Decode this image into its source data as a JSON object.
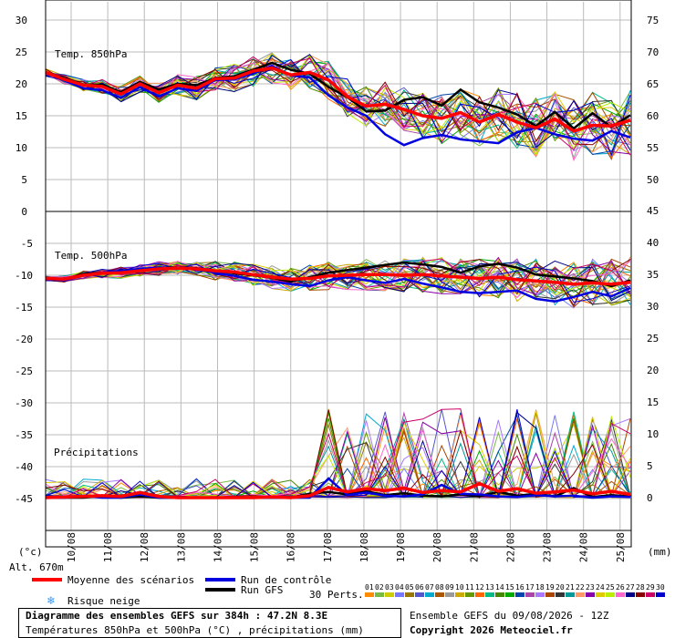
{
  "chart_data": {
    "type": "line",
    "panels": [
      {
        "id": "t850",
        "title": "Temp. 850hPa",
        "left_axis": {
          "ticks": [
            "30",
            "25",
            "20",
            "15",
            "10",
            "5",
            "0"
          ],
          "min": 0,
          "max": 30
        },
        "right_axis": {
          "ticks": [
            "75",
            "70",
            "65",
            "60",
            "55",
            "50"
          ],
          "min": 45,
          "max": 75
        }
      },
      {
        "id": "t500",
        "title": "Temp. 500hPa",
        "left_axis": {
          "ticks": [
            "-5",
            "-10",
            "-15",
            "-20",
            "-25",
            "-30",
            "-35",
            "-40",
            "-45"
          ],
          "min": -50,
          "max": 0
        },
        "right_axis": {
          "ticks": [
            "45",
            "40",
            "35",
            "30",
            "25",
            "20",
            "15",
            "10",
            "5",
            "0"
          ],
          "min": -5,
          "max": 45
        }
      }
    ],
    "precip_title": "Précipitations",
    "x_labels": [
      "10/08",
      "11/08",
      "12/08",
      "13/08",
      "14/08",
      "15/08",
      "16/08",
      "17/08",
      "18/08",
      "19/08",
      "20/08",
      "21/08",
      "22/08",
      "23/08",
      "24/08",
      "25/08"
    ],
    "unit_left": "(°c)",
    "unit_right": "(mm)",
    "altitude": "Alt. 670m",
    "series": [
      {
        "name": "Moyenne des scénarios",
        "color": "#ff0000",
        "t850": [
          21.8,
          20.7,
          19.8,
          19.6,
          18.4,
          20.0,
          18.6,
          19.8,
          19.3,
          20.8,
          20.9,
          22.0,
          22.5,
          21.4,
          21.8,
          20.6,
          18.0,
          16.5,
          16.8,
          16.0,
          15.0,
          14.6,
          15.5,
          14.0,
          15.2,
          14.0,
          13.1,
          14.5,
          12.6,
          13.5,
          13.4,
          14.3
        ],
        "t500": [
          -10.5,
          -10.6,
          -10.0,
          -9.7,
          -9.6,
          -9.3,
          -9.0,
          -8.9,
          -9.0,
          -9.3,
          -9.5,
          -9.9,
          -10.3,
          -10.6,
          -10.5,
          -10.1,
          -10.0,
          -9.9,
          -9.9,
          -10.0,
          -9.9,
          -10.1,
          -10.3,
          -10.5,
          -10.3,
          -10.7,
          -10.9,
          -11.1,
          -11.4,
          -11.2,
          -11.4,
          -11.1
        ],
        "precip": [
          0,
          0.1,
          0.2,
          0.3,
          0.2,
          0.8,
          0.2,
          0,
          0,
          0,
          0,
          0,
          0.1,
          0,
          0.3,
          1.6,
          0.9,
          1.4,
          1.1,
          1.5,
          0.8,
          1.1,
          0.9,
          2.2,
          1.0,
          1.4,
          0.7,
          0.9,
          1.2,
          0.6,
          1.0,
          0.5
        ]
      },
      {
        "name": "Run de contrôle",
        "color": "#0000e0",
        "t850": [
          21.8,
          20.5,
          19.3,
          19.0,
          17.8,
          19.5,
          18.0,
          19.3,
          18.9,
          20.6,
          20.7,
          21.6,
          22.8,
          21.3,
          21.0,
          18.2,
          16.3,
          15.0,
          12.1,
          10.4,
          11.5,
          12.0,
          11.3,
          11.0,
          10.7,
          12.4,
          13.1,
          12.1,
          11.4,
          11.1,
          12.6,
          11.6
        ],
        "t500": [
          -10.4,
          -10.8,
          -10.0,
          -9.6,
          -9.3,
          -9.0,
          -8.8,
          -8.9,
          -9.1,
          -9.6,
          -10.1,
          -10.7,
          -11.0,
          -11.4,
          -11.7,
          -10.8,
          -10.3,
          -10.8,
          -11.2,
          -10.6,
          -11.3,
          -11.9,
          -12.6,
          -12.8,
          -12.6,
          -12.4,
          -13.7,
          -14.1,
          -13.4,
          -12.6,
          -13.3,
          -12.0
        ],
        "precip": [
          0,
          0,
          0.3,
          0,
          0,
          0.5,
          0,
          0,
          0,
          0,
          0,
          0,
          0,
          0,
          0,
          3.0,
          0.4,
          0.8,
          0.3,
          0.2,
          0.5,
          2.0,
          0.6,
          0.5,
          0.2,
          0.1,
          0.4,
          0.2,
          0.3,
          0,
          0.2,
          0.1
        ]
      },
      {
        "name": "Run GFS",
        "color": "#000000",
        "t850": [
          21.8,
          20.9,
          19.9,
          19.9,
          18.7,
          20.3,
          19.1,
          20.0,
          19.8,
          20.9,
          21.2,
          22.2,
          23.3,
          22.2,
          21.6,
          19.5,
          17.9,
          15.7,
          15.8,
          17.5,
          17.9,
          16.6,
          19.1,
          17.1,
          16.3,
          15.2,
          13.4,
          15.6,
          13.0,
          15.4,
          13.2,
          15.1
        ],
        "t500": [
          -10.4,
          -10.6,
          -9.8,
          -9.6,
          -9.4,
          -9.1,
          -8.8,
          -8.8,
          -8.9,
          -9.3,
          -9.7,
          -10.0,
          -10.4,
          -11.0,
          -10.3,
          -9.6,
          -9.2,
          -8.8,
          -8.4,
          -8.0,
          -8.3,
          -8.7,
          -9.6,
          -8.6,
          -8.2,
          -8.8,
          -9.9,
          -10.2,
          -10.5,
          -10.9,
          -11.7,
          -10.8
        ],
        "precip": [
          0,
          0,
          0,
          0.3,
          0,
          0.2,
          0,
          0,
          0,
          0,
          0,
          0,
          0,
          0,
          0.6,
          0.9,
          0.5,
          1.0,
          0.4,
          0.7,
          0.3,
          0.2,
          0.5,
          0.2,
          0.9,
          0.3,
          0.6,
          0.2,
          1.5,
          0.1,
          0.4,
          0.2
        ]
      }
    ],
    "legend": {
      "mean": "Moyenne des scénarios",
      "control": "Run de contrôle",
      "gfs": "Run GFS",
      "perts": "30 Perts.",
      "snow": "Risque neige"
    },
    "pert_labels": [
      "01",
      "02",
      "03",
      "04",
      "05",
      "06",
      "07",
      "08",
      "09",
      "10",
      "11",
      "12",
      "13",
      "14",
      "15",
      "16",
      "17",
      "18",
      "19",
      "20",
      "21",
      "22",
      "23",
      "24",
      "25",
      "26",
      "27",
      "28",
      "29",
      "30"
    ],
    "pert_colors": [
      "#ff8c00",
      "#77bb44",
      "#cccc00",
      "#7777ff",
      "#997700",
      "#5555cc",
      "#00aacc",
      "#aa5500",
      "#999999",
      "#ccaa00",
      "#669900",
      "#ff6600",
      "#00bb88",
      "#448800",
      "#00aa00",
      "#0044aa",
      "#aa44aa",
      "#aa77ff",
      "#aa4400",
      "#333333",
      "#009999",
      "#ff9966",
      "#8800aa",
      "#ddcc00",
      "#bbee00",
      "#ff66cc",
      "#000088",
      "#880000",
      "#cc0066",
      "#0000cc"
    ]
  },
  "footer": {
    "title": "Diagramme des ensembles GEFS sur 384h : 47.2N 8.3E",
    "subtitle": "Températures 850hPa et 500hPa (°C) , précipitations (mm)",
    "run": "Ensemble GEFS du 09/08/2026 - 12Z",
    "copyright": "Copyright 2026 Meteociel.fr"
  }
}
